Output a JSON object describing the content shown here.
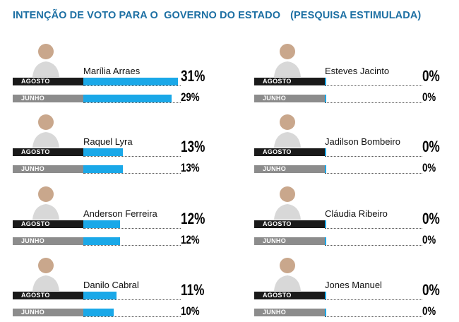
{
  "header": {
    "title": "INTENÇÃO DE VOTO PARA O  GOVERNO DO ESTADO",
    "subtitle": "(PESQUISA ESTIMULADA)"
  },
  "labels": {
    "agosto": "AGOSTO",
    "junho": "JUNHO"
  },
  "colors": {
    "bar": "#1aa8e8",
    "agosto_label": "#1a1a1a",
    "junho_label": "#8c8c8c",
    "title": "#1c6fa3"
  },
  "candidates": [
    {
      "name": "Marília Arraes",
      "agosto": "31%",
      "junho": "29%"
    },
    {
      "name": "Raquel Lyra",
      "agosto": "13%",
      "junho": "13%"
    },
    {
      "name": "Anderson Ferreira",
      "agosto": "12%",
      "junho": "12%"
    },
    {
      "name": "Danilo Cabral",
      "agosto": "11%",
      "junho": "10%"
    },
    {
      "name": "Esteves Jacinto",
      "agosto": "0%",
      "junho": "0%"
    },
    {
      "name": "Jadilson Bombeiro",
      "agosto": "0%",
      "junho": "0%"
    },
    {
      "name": "Cláudia Ribeiro",
      "agosto": "0%",
      "junho": "0%"
    },
    {
      "name": "Jones Manuel",
      "agosto": "0%",
      "junho": "0%"
    }
  ],
  "chart_data": {
    "type": "bar",
    "title": "INTENÇÃO DE VOTO PARA O  GOVERNO DO ESTADO",
    "subtitle": "(PESQUISA ESTIMULADA)",
    "categories": [
      "Marília Arraes",
      "Raquel Lyra",
      "Anderson Ferreira",
      "Danilo Cabral",
      "Esteves Jacinto",
      "Jadilson Bombeiro",
      "Cláudia Ribeiro",
      "Jones Manuel"
    ],
    "series": [
      {
        "name": "AGOSTO",
        "values": [
          31,
          13,
          12,
          11,
          0,
          0,
          0,
          0
        ]
      },
      {
        "name": "JUNHO",
        "values": [
          29,
          13,
          12,
          10,
          0,
          0,
          0,
          0
        ]
      }
    ],
    "unit": "%"
  }
}
